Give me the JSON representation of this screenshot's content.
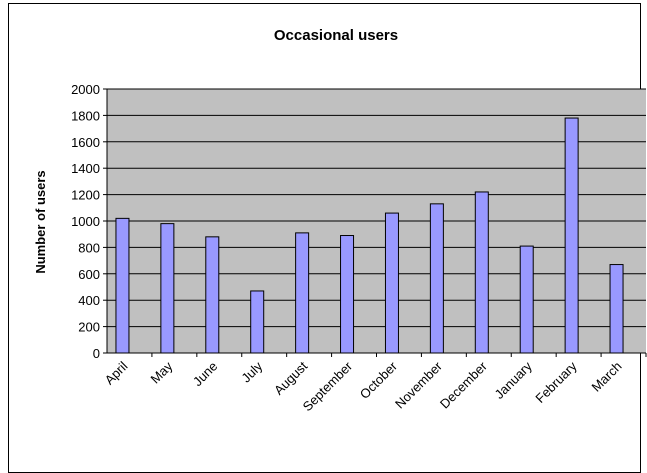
{
  "chart_data": {
    "type": "bar",
    "title": "Occasional users",
    "xlabel": "",
    "ylabel": "Number of users",
    "categories": [
      "April",
      "May",
      "June",
      "July",
      "August",
      "September",
      "October",
      "November",
      "December",
      "January",
      "February",
      "March"
    ],
    "values": [
      1020,
      980,
      880,
      470,
      910,
      890,
      1060,
      1130,
      1220,
      810,
      1780,
      670
    ],
    "ylim": [
      0,
      2000
    ],
    "yticks": [
      0,
      200,
      400,
      600,
      800,
      1000,
      1200,
      1400,
      1600,
      1800,
      2000
    ],
    "grid": true,
    "legend": "none",
    "colors": {
      "plot_background": "#c0c0c0",
      "bar_fill": "#9999ff",
      "bar_stroke": "#000000",
      "gridline": "#000000"
    }
  }
}
